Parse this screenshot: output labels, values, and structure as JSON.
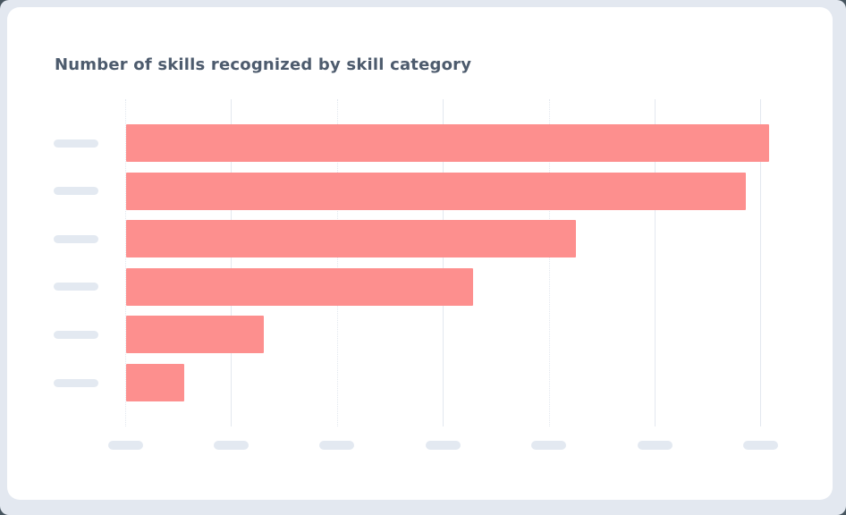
{
  "chart_data": {
    "type": "bar",
    "orientation": "horizontal",
    "title": "Number of skills recognized by skill category",
    "series": [
      {
        "name": "skills-recognized",
        "values_in_gridline_units": [
          6.07,
          5.85,
          4.25,
          3.28,
          1.3,
          0.55
        ]
      }
    ],
    "categories": [
      "",
      "",
      "",
      "",
      "",
      ""
    ],
    "category_labels_state": "skeleton-placeholder",
    "x_tick_labels_state": "skeleton-placeholder",
    "x_axis": {
      "gridline_count": 7,
      "unit_range": [
        0,
        6.4
      ],
      "first_gridline_is_axis": true,
      "dotted_gridline_indices": [
        0,
        2,
        4
      ]
    },
    "ylabel": "",
    "xlabel": "",
    "legend": "none",
    "grid": "vertical-only"
  },
  "skeleton": {
    "y_labels_count": 6,
    "x_labels_count": 7
  },
  "colors": {
    "bar": "#FD8F8E",
    "gridline": "#E3E8EF",
    "skeleton_pill": "#E3E9F1",
    "title_text": "#4D5B6D",
    "card_bg": "#FFFFFF",
    "frame_bg": "#E3E8F0",
    "page_bg": "#47555F"
  }
}
